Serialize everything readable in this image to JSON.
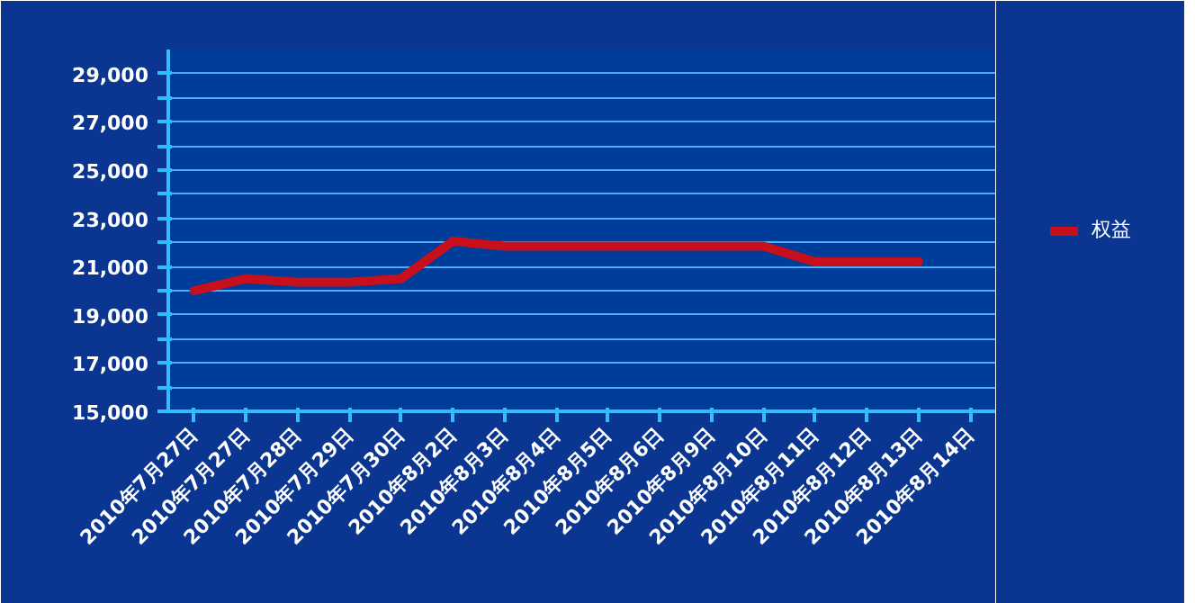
{
  "chart_data": {
    "type": "line",
    "categories": [
      "2010年7月27日",
      "2010年7月27日",
      "2010年7月28日",
      "2010年7月29日",
      "2010年7月30日",
      "2010年8月2日",
      "2010年8月3日",
      "2010年8月4日",
      "2010年8月5日",
      "2010年8月6日",
      "2010年8月9日",
      "2010年8月10日",
      "2010年8月11日",
      "2010年8月12日",
      "2010年8月13日",
      "2010年8月14日"
    ],
    "series": [
      {
        "name": "权益",
        "color": "#c8101c",
        "values": [
          20000,
          20500,
          20350,
          20350,
          20500,
          22050,
          21850,
          21850,
          21850,
          21850,
          21850,
          21850,
          21200,
          21200,
          21200,
          null
        ]
      }
    ],
    "ylim": [
      15000,
      30000
    ],
    "yticks": [
      "15,000",
      {
        "value": 16000,
        "label": null
      },
      {
        "value": 17000,
        "label": "17,000"
      },
      {
        "value": 18000,
        "label": null
      },
      {
        "value": 19000,
        "label": "19,000"
      },
      {
        "value": 20000,
        "label": null
      },
      {
        "value": 21000,
        "label": "21,000"
      },
      {
        "value": 22000,
        "label": null
      },
      {
        "value": 23000,
        "label": "23,000"
      },
      {
        "value": 24000,
        "label": null
      },
      {
        "value": 25000,
        "label": "25,000"
      },
      {
        "value": 26000,
        "label": null
      },
      {
        "value": 27000,
        "label": "27,000"
      },
      {
        "value": 28000,
        "label": null
      },
      {
        "value": 29000,
        "label": "29,000"
      }
    ],
    "grid": "y",
    "legend": "right",
    "marker": "none",
    "line_style": "solid"
  }
}
